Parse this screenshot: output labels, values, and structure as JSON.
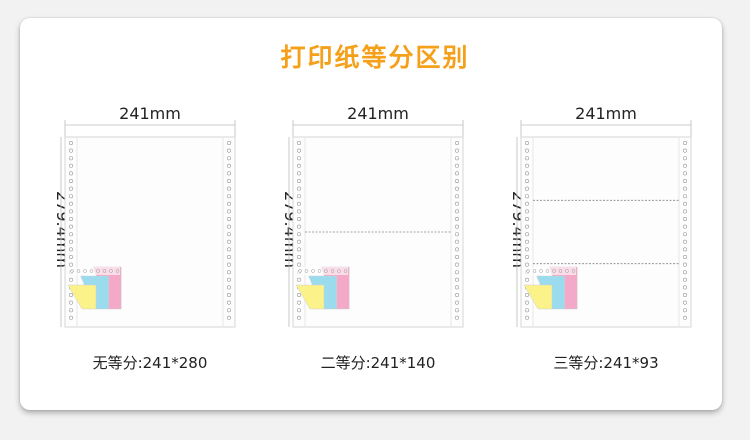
{
  "title": "打印纸等分区别",
  "colors": {
    "title": "#f5a01a",
    "pink": "#f4a9c8",
    "cyan": "#9adcee",
    "yellow": "#fbf28a",
    "perforation": "#999999"
  },
  "panels": [
    {
      "width_label": "241mm",
      "height_label": "279.4mm",
      "caption": "无等分:241*280",
      "divisions": 1
    },
    {
      "width_label": "241mm",
      "height_label": "279.4mm",
      "caption": "二等分:241*140",
      "divisions": 2
    },
    {
      "width_label": "241mm",
      "height_label": "279.4mm",
      "caption": "三等分:241*93",
      "divisions": 3
    }
  ]
}
